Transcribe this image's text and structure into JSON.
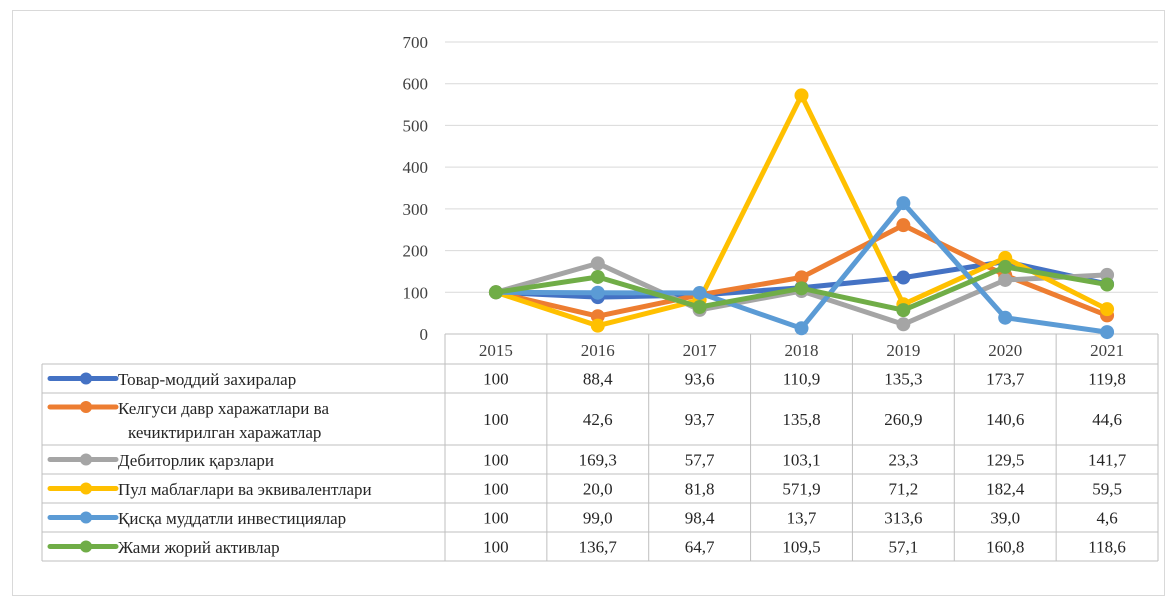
{
  "chart_data": {
    "type": "line",
    "title": "",
    "xlabel": "",
    "ylabel": "",
    "ylim": [
      0,
      700
    ],
    "yticks": [
      0,
      100,
      200,
      300,
      400,
      500,
      600,
      700
    ],
    "grid": true,
    "legend": "data-table-below",
    "categories": [
      "2015",
      "2016",
      "2017",
      "2018",
      "2019",
      "2020",
      "2021"
    ],
    "series": [
      {
        "name": "Товар-моддий захиралар",
        "name_lines": [
          "Товар-моддий захиралар"
        ],
        "color": "#4472C4",
        "values": [
          100,
          88.4,
          93.6,
          110.9,
          135.3,
          173.7,
          119.8
        ],
        "labels": [
          "100",
          "88,4",
          "93,6",
          "110,9",
          "135,3",
          "173,7",
          "119,8"
        ]
      },
      {
        "name": "Келгуси давр харажатлари ва кечиктирилган харажатлар",
        "name_lines": [
          "Келгуси давр харажатлари ва",
          "кечиктирилган харажатлар"
        ],
        "color": "#ED7D31",
        "values": [
          100,
          42.6,
          93.7,
          135.8,
          260.9,
          140.6,
          44.6
        ],
        "labels": [
          "100",
          "42,6",
          "93,7",
          "135,8",
          "260,9",
          "140,6",
          "44,6"
        ]
      },
      {
        "name": "Дебиторлик қарзлари",
        "name_lines": [
          "Дебиторлик қарзлари"
        ],
        "color": "#A5A5A5",
        "values": [
          100,
          169.3,
          57.7,
          103.1,
          23.3,
          129.5,
          141.7
        ],
        "labels": [
          "100",
          "169,3",
          "57,7",
          "103,1",
          "23,3",
          "129,5",
          "141,7"
        ]
      },
      {
        "name": "Пул маблағлари ва эквивалентлари",
        "name_lines": [
          "Пул маблағлари ва эквивалентлари"
        ],
        "color": "#FFC000",
        "values": [
          100,
          20.0,
          81.8,
          571.9,
          71.2,
          182.4,
          59.5
        ],
        "labels": [
          "100",
          "20,0",
          "81,8",
          "571,9",
          "71,2",
          "182,4",
          "59,5"
        ]
      },
      {
        "name": "Қисқа муддатли инвестициялар",
        "name_lines": [
          "Қисқа муддатли инвестициялар"
        ],
        "color": "#5B9BD5",
        "values": [
          100,
          99.0,
          98.4,
          13.7,
          313.6,
          39.0,
          4.6
        ],
        "labels": [
          "100",
          "99,0",
          "98,4",
          "13,7",
          "313,6",
          "39,0",
          "4,6"
        ]
      },
      {
        "name": "Жами жорий активлар",
        "name_lines": [
          "Жами жорий активлар"
        ],
        "color": "#70AD47",
        "values": [
          100,
          136.7,
          64.7,
          109.5,
          57.1,
          160.8,
          118.6
        ],
        "labels": [
          "100",
          "136,7",
          "64,7",
          "109,5",
          "57,1",
          "160,8",
          "118,6"
        ]
      }
    ]
  }
}
